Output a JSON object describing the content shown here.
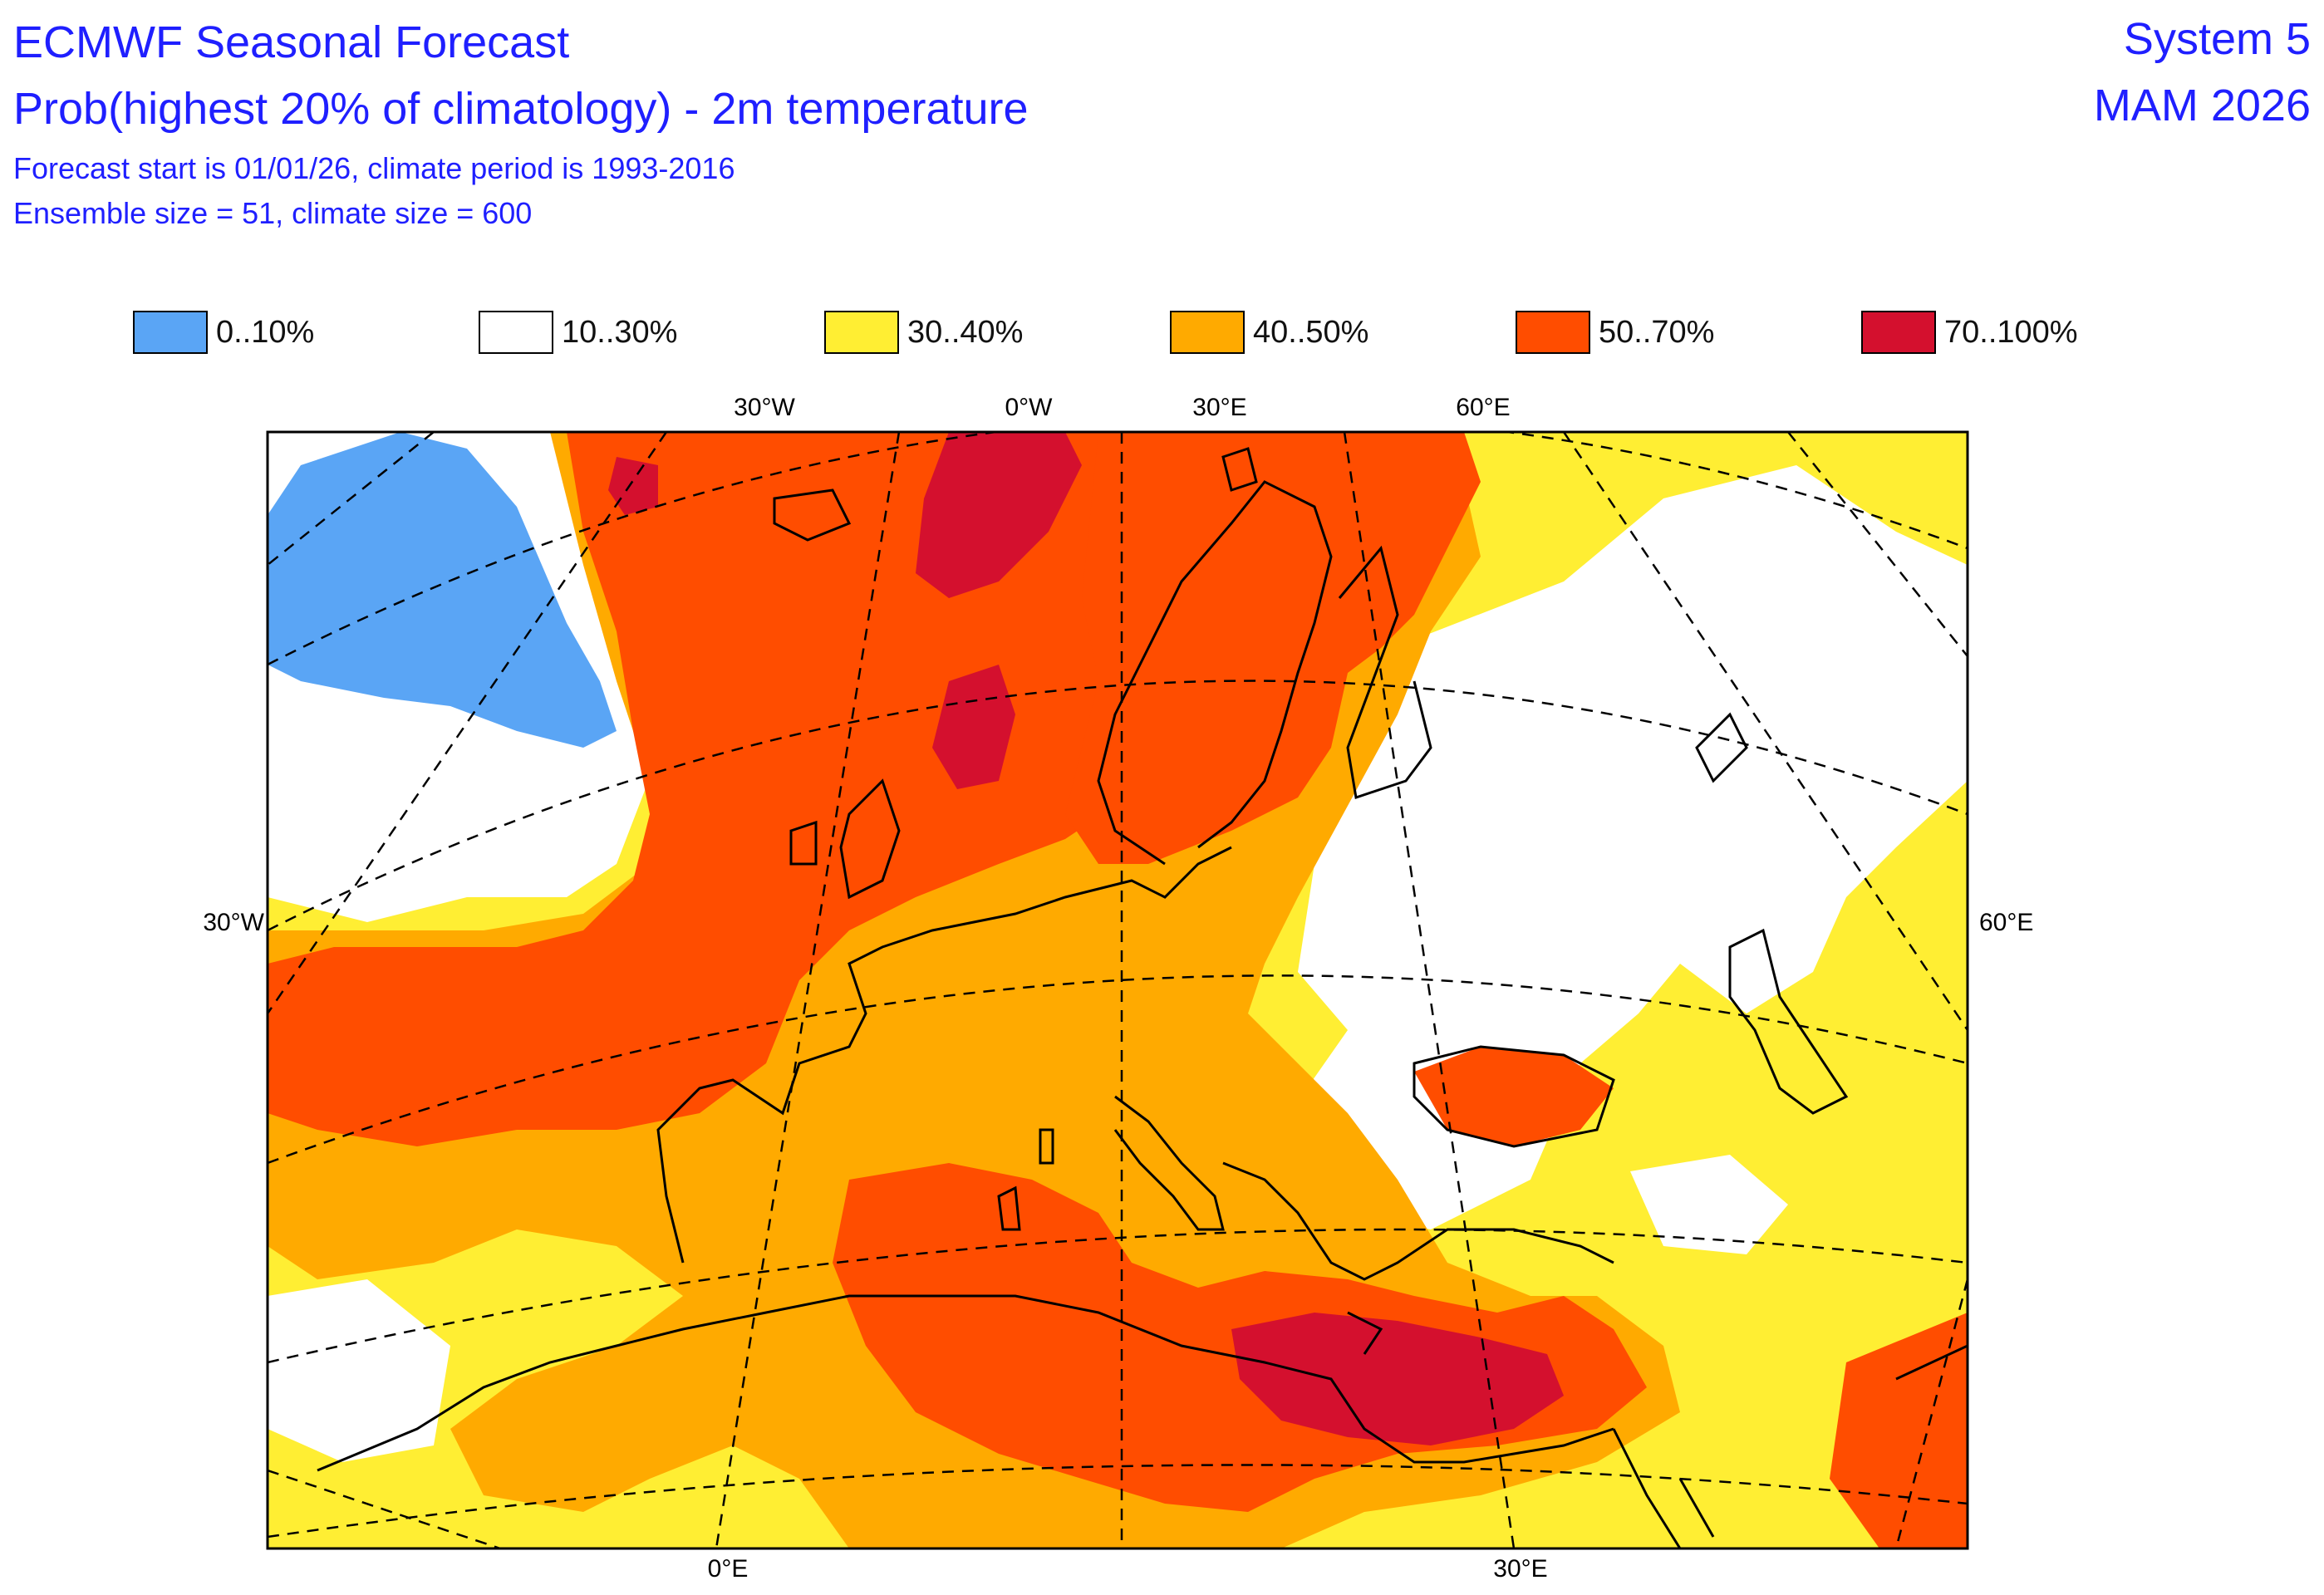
{
  "header": {
    "title": "ECMWF Seasonal Forecast",
    "subtitle": "Prob(highest 20% of climatology) - 2m temperature",
    "line1": "Forecast start is 01/01/26, climate period is 1993-2016",
    "line2": "Ensemble size = 51, climate size = 600",
    "system": "System 5",
    "season": "MAM 2026",
    "text_color": "#1f1fff"
  },
  "legend": [
    {
      "label": "0..10%",
      "color": "#5aa5f5"
    },
    {
      "label": "10..30%",
      "color": "#ffffff"
    },
    {
      "label": "30..40%",
      "color": "#ffee33"
    },
    {
      "label": "40..50%",
      "color": "#ffaa00"
    },
    {
      "label": "50..70%",
      "color": "#ff4d00"
    },
    {
      "label": "70..100%",
      "color": "#d4102e"
    }
  ],
  "map_labels": {
    "top": [
      "30°W",
      "0°W",
      "30°E",
      "60°E"
    ],
    "left": "30°W",
    "right": "60°E",
    "bottom": [
      "0°E",
      "30°E"
    ]
  }
}
